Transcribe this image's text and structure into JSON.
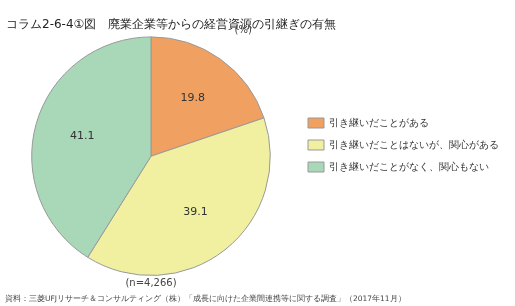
{
  "chart_data": {
    "type": "pie",
    "title": "コラム2-6-4①図　廃業企業等からの経営資源の引継ぎの有無",
    "categories": [
      "引き継いだことがある",
      "引き継いだことはないが、関心がある",
      "引き継いだことがなく、関心もない"
    ],
    "values": [
      19.8,
      39.1,
      41.1
    ],
    "colors": [
      "#F0A060",
      "#F0F0A0",
      "#A8D8B8"
    ],
    "data_labels": true,
    "legend": "right",
    "annotations": [
      "(%)",
      "(n=4,266)",
      "資料：三菱UFJリサーチ＆コンサルティング（株）「成長に向けた企業間連携等に関する調査」（2017年11月）"
    ]
  }
}
